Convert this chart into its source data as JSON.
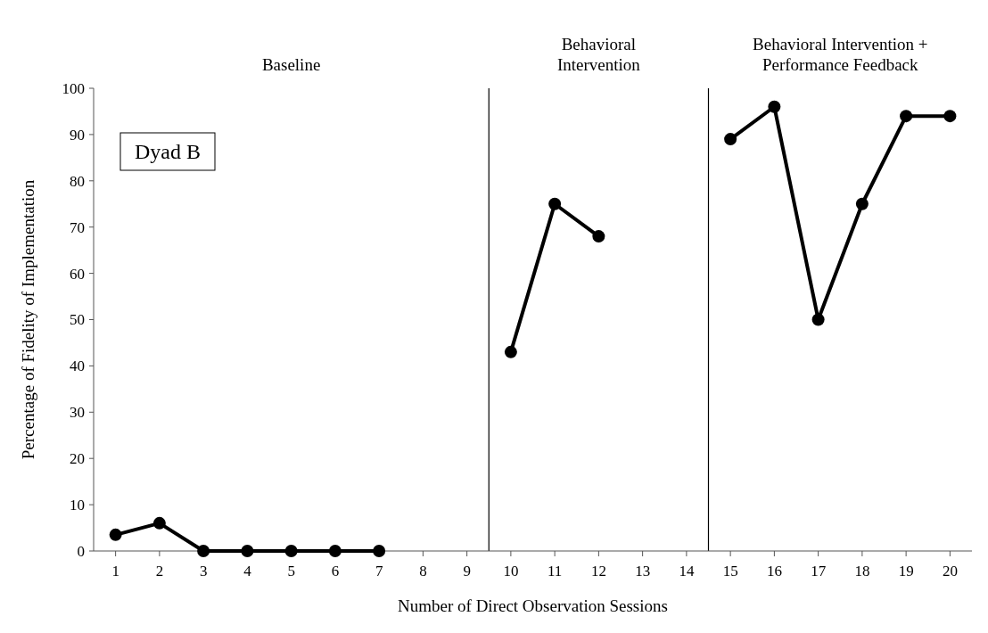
{
  "chart_data": {
    "type": "line",
    "xlabel": "Number of Direct Observation Sessions",
    "ylabel": "Percentage of Fidelity of Implementation",
    "x": [
      1,
      2,
      3,
      4,
      5,
      6,
      7,
      8,
      9,
      10,
      11,
      12,
      13,
      14,
      15,
      16,
      17,
      18,
      19,
      20
    ],
    "series": [
      {
        "color": "#000000",
        "values": [
          3.5,
          6,
          0,
          0,
          0,
          0,
          0,
          null,
          null,
          43,
          75,
          68,
          null,
          null,
          89,
          96,
          50,
          75,
          94,
          94
        ]
      }
    ],
    "xlim": [
      0.5,
      20.5
    ],
    "xticks": [
      1,
      2,
      3,
      4,
      5,
      6,
      7,
      8,
      9,
      10,
      11,
      12,
      13,
      14,
      15,
      16,
      17,
      18,
      19,
      20
    ],
    "ylim": [
      0,
      100
    ],
    "yticks": [
      0,
      10,
      20,
      30,
      40,
      50,
      60,
      70,
      80,
      90,
      100
    ],
    "ref_lines": [
      {
        "axis": "x",
        "value": 9.5,
        "color": "#000000"
      },
      {
        "axis": "x",
        "value": 14.5,
        "color": "#000000"
      }
    ],
    "annotations": [
      "Baseline",
      "Behavioral\nIntervention",
      "Behavioral Intervention +\nPerformance Feedback",
      "Dyad B"
    ],
    "grid": false,
    "marker": "circle",
    "line_style": "solid"
  }
}
